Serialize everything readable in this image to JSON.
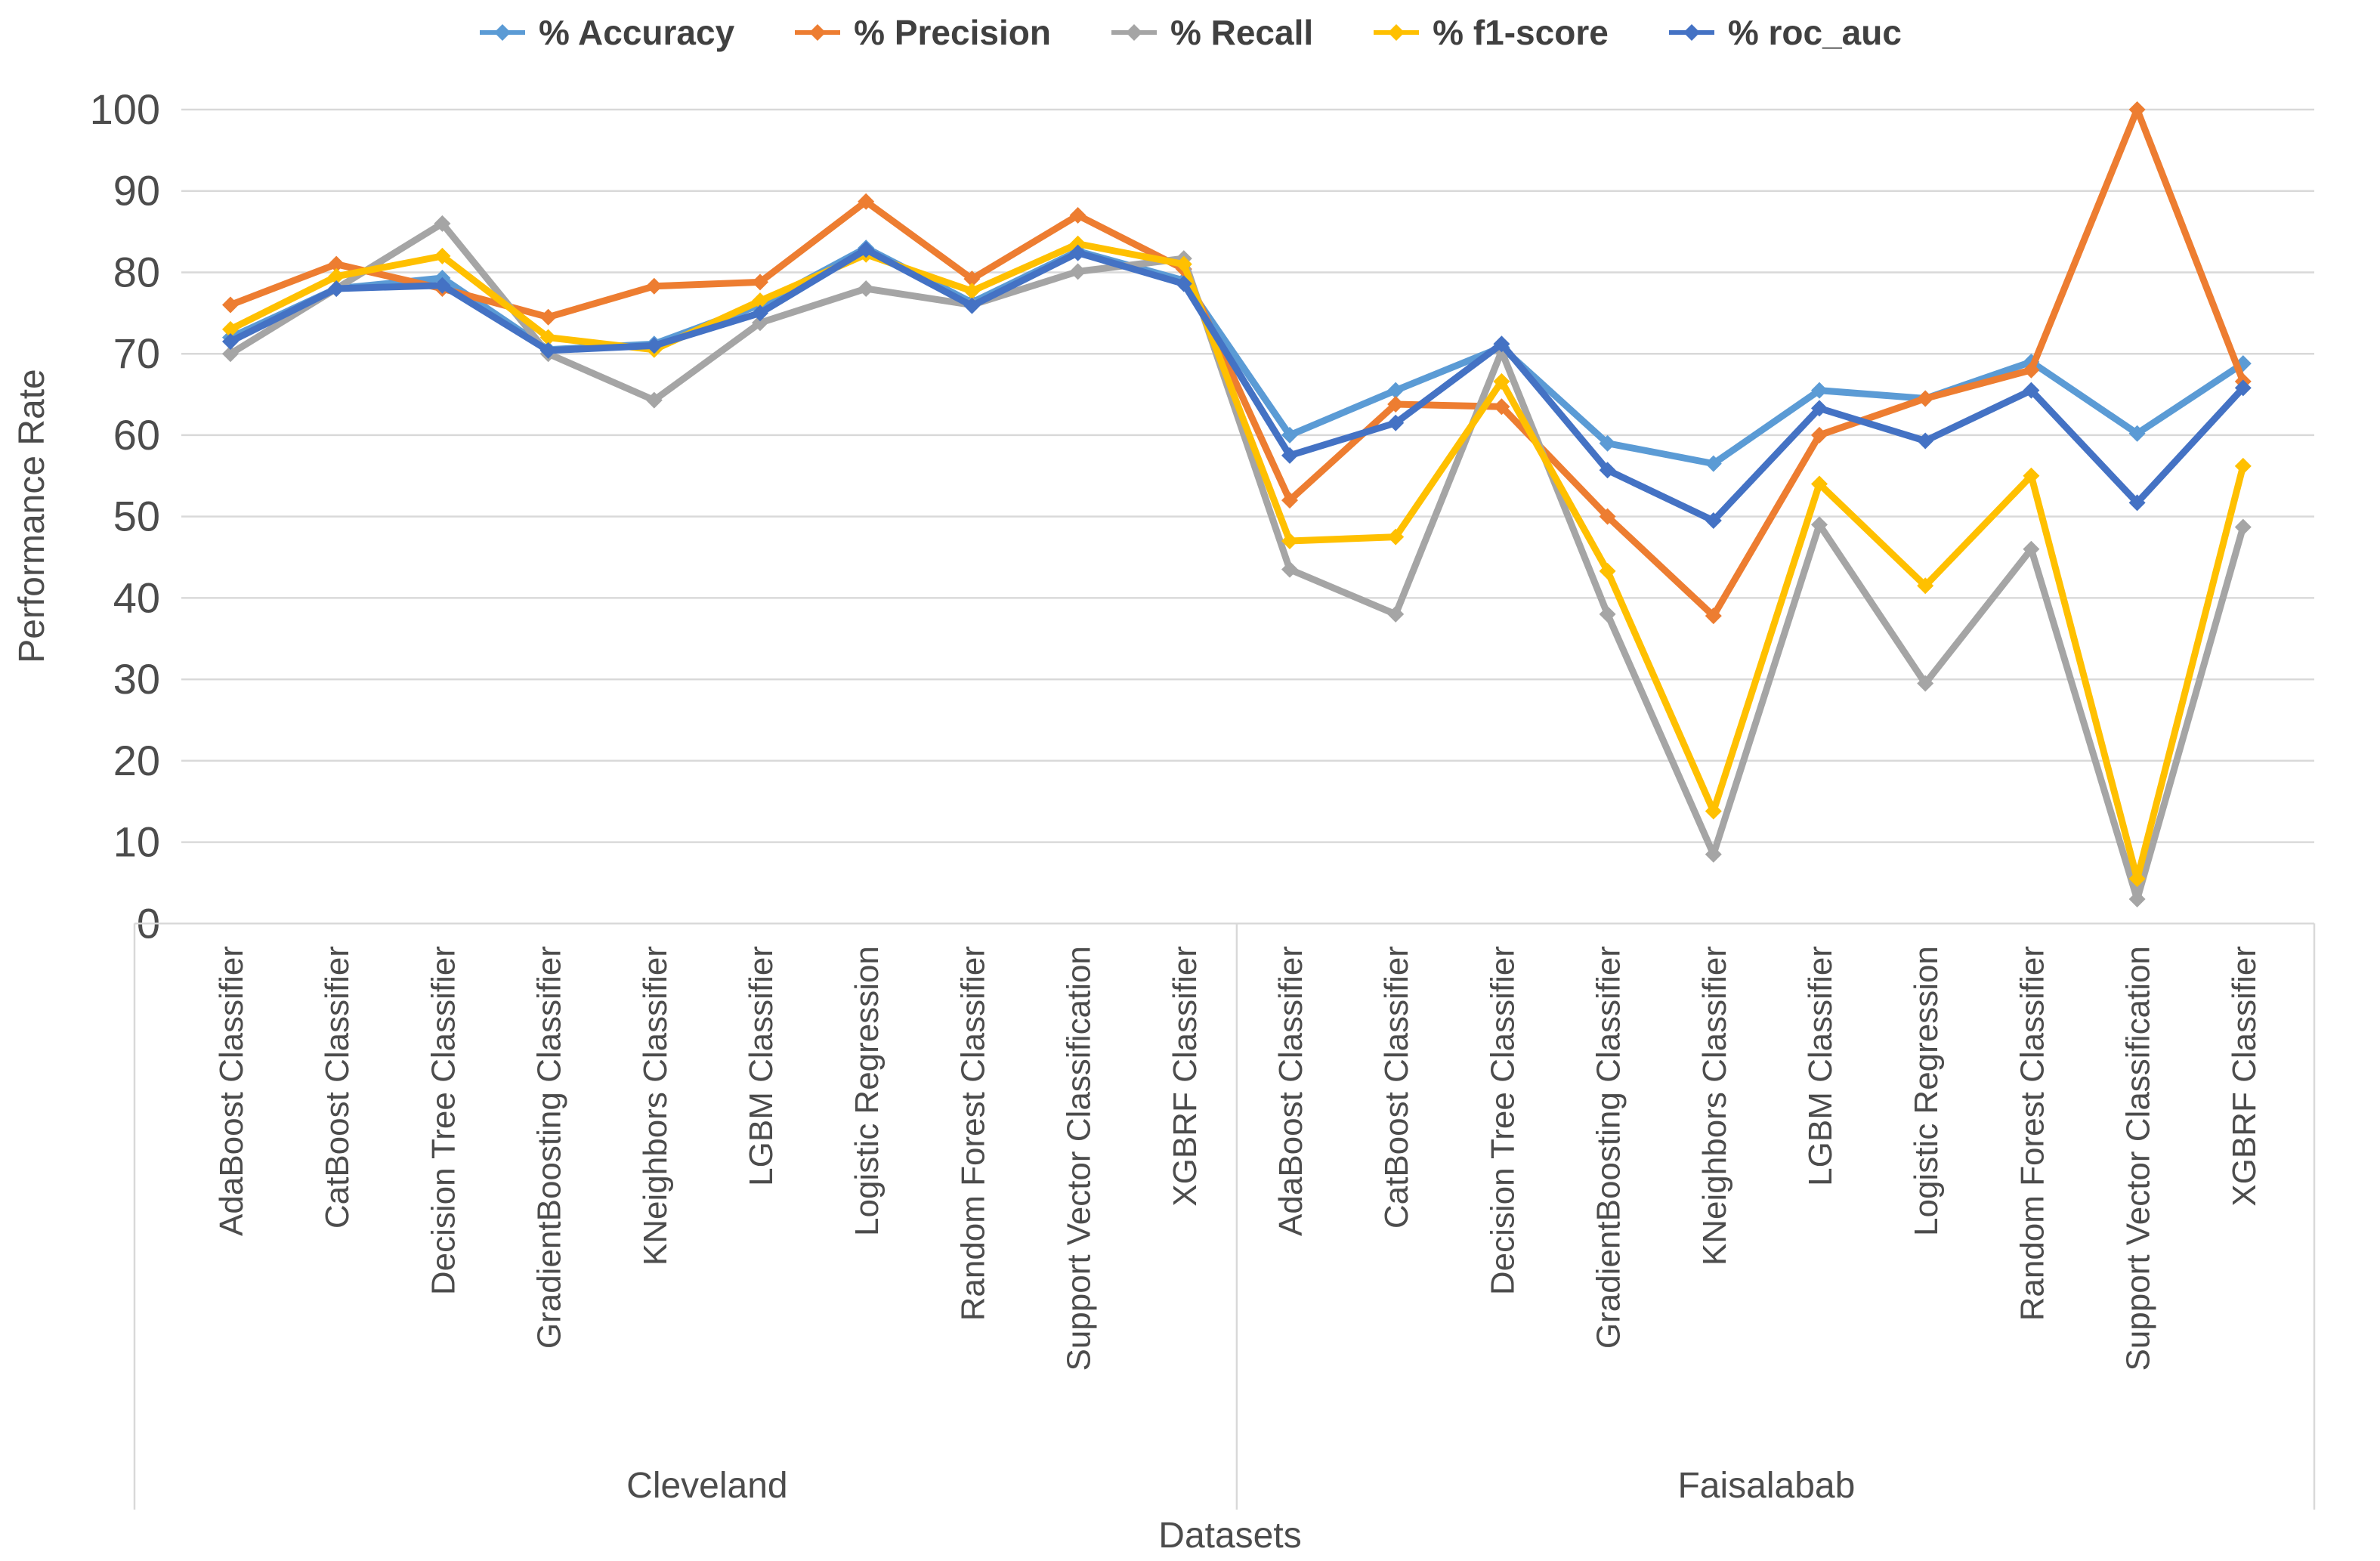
{
  "page": {
    "background": "#FFFFFF"
  },
  "chart_data": {
    "type": "line",
    "title": "",
    "xlabel": "Datasets",
    "ylabel": "Performance Rate",
    "ylim": [
      0,
      100
    ],
    "ytick_step": 10,
    "grid": true,
    "legend_position": "top",
    "colors": {
      "grid": "#D9D9D9",
      "text": "#4c4c4c",
      "background": "#FFFFFF"
    },
    "groups": [
      {
        "label": "Cleveland",
        "categories": [
          "AdaBoost Classifier",
          "CatBoost Classifier",
          "Decision Tree Classifier",
          "GradientBoosting Classifier",
          "KNeighbors Classifier",
          "LGBM Classifier",
          "Logistic Regression",
          "Random Forest Classifier",
          "Support Vector Classification",
          "XGBRF Classifier"
        ]
      },
      {
        "label": "Faisalabab",
        "categories": [
          "AdaBoost Classifier",
          "CatBoost Classifier",
          "Decision Tree Classifier",
          "GradientBoosting Classifier",
          "KNeighbors Classifier",
          "LGBM Classifier",
          "Logistic Regression",
          "Random Forest Classifier",
          "Support Vector Classification",
          "XGBRF Classifier"
        ]
      }
    ],
    "series": [
      {
        "name": "% Accuracy",
        "color": "#5B9BD5",
        "values": [
          72,
          78,
          79.3,
          70.5,
          71.2,
          76,
          83,
          76.3,
          82.6,
          79,
          60,
          65.5,
          70.8,
          59,
          56.5,
          65.5,
          64.5,
          69,
          60.2,
          68.8
        ]
      },
      {
        "name": "% Precision",
        "color": "#ED7D31",
        "values": [
          76,
          81,
          78,
          74.5,
          78.3,
          78.8,
          88.7,
          79.2,
          87,
          80.4,
          52,
          63.8,
          63.5,
          50,
          37.8,
          60,
          64.5,
          68,
          100,
          66.6
        ]
      },
      {
        "name": "% Recall",
        "color": "#A5A5A5",
        "values": [
          70,
          78,
          86,
          70,
          64.3,
          73.8,
          78,
          76,
          80.1,
          81.7,
          43.5,
          38,
          70.3,
          38,
          8.5,
          49,
          29.5,
          46,
          3,
          48.7
        ]
      },
      {
        "name": "% f1-score",
        "color": "#FFC000",
        "values": [
          73,
          79.5,
          82,
          72,
          70.5,
          76.5,
          82.2,
          77.7,
          83.5,
          81,
          47,
          47.5,
          66.6,
          43.3,
          13.8,
          54,
          41.5,
          55,
          5.5,
          56.2
        ]
      },
      {
        "name": "% roc_auc",
        "color": "#4472C4",
        "values": [
          71.5,
          78,
          78.4,
          70.4,
          71,
          75,
          82.8,
          75.9,
          82.4,
          78.6,
          57.5,
          61.5,
          71.2,
          55.7,
          49.5,
          63.3,
          59.3,
          65.5,
          51.7,
          65.8
        ]
      }
    ]
  }
}
